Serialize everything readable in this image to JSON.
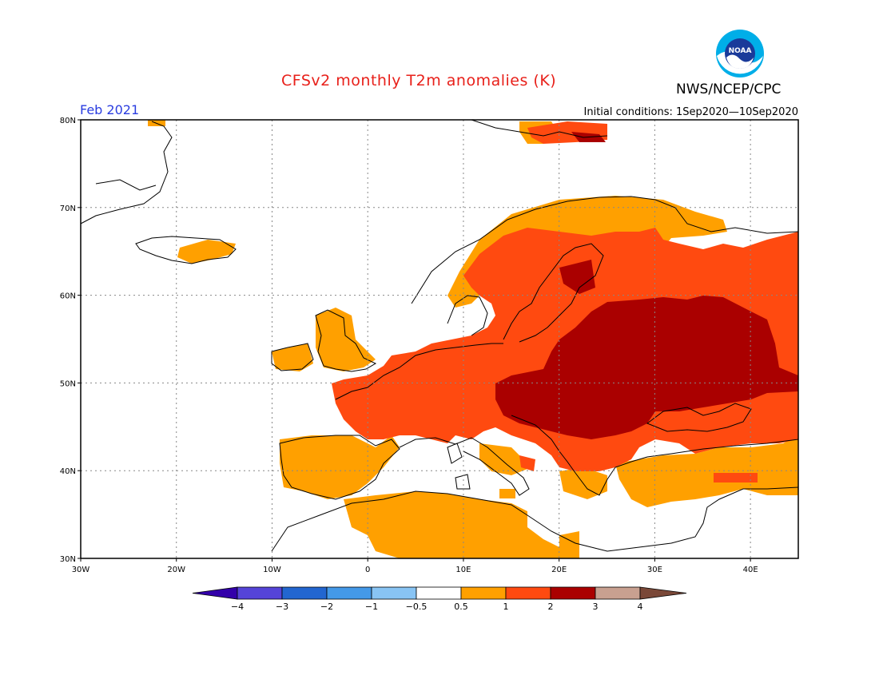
{
  "header": {
    "title": "CFSv2 monthly T2m anomalies (K)",
    "org": "NWS/NCEP/CPC",
    "period": "Feb 2021",
    "initial_conditions": "Initial conditions: 1Sep2020—10Sep2020",
    "logo_text": "NOAA"
  },
  "map": {
    "lon_range": [
      -30,
      45
    ],
    "lat_range": [
      30,
      80
    ],
    "lon_ticks": [
      {
        "lon": -30,
        "label": "30W"
      },
      {
        "lon": -20,
        "label": "20W"
      },
      {
        "lon": -10,
        "label": "10W"
      },
      {
        "lon": 0,
        "label": "0"
      },
      {
        "lon": 10,
        "label": "10E"
      },
      {
        "lon": 20,
        "label": "20E"
      },
      {
        "lon": 30,
        "label": "30E"
      },
      {
        "lon": 40,
        "label": "40E"
      }
    ],
    "lat_ticks": [
      {
        "lat": 80,
        "label": "80N"
      },
      {
        "lat": 70,
        "label": "70N"
      },
      {
        "lat": 60,
        "label": "60N"
      },
      {
        "lat": 50,
        "label": "50N"
      },
      {
        "lat": 40,
        "label": "40N"
      },
      {
        "lat": 30,
        "label": "30N"
      }
    ],
    "grid": true
  },
  "colorbar": {
    "colors": [
      "#3300aa",
      "#5544d8",
      "#2266d0",
      "#4499e8",
      "#88c4f4",
      "#ffffff",
      "#ffa000",
      "#ff4a10",
      "#aa0000",
      "#c8a090",
      "#7a4838"
    ],
    "labels": [
      "−4",
      "−3",
      "−2",
      "−1",
      "−0.5",
      "0.5",
      "1",
      "2",
      "3",
      "4"
    ]
  },
  "anomaly_colors": {
    "band_05_1": "#ffa000",
    "band_1_2": "#ff4a10",
    "band_2_3": "#aa0000"
  }
}
